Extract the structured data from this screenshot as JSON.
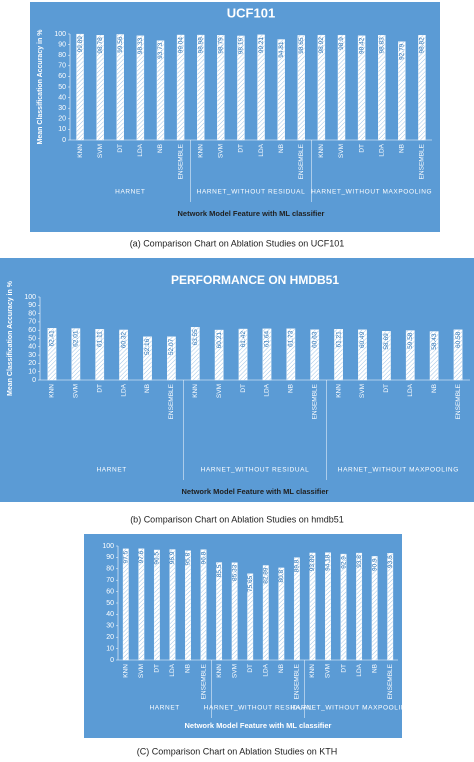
{
  "chart_data": [
    {
      "type": "bar",
      "title": "UCF101",
      "y_label": "Mean Classification Accuracy in %",
      "x_label": "Network Model Feature with ML classifier",
      "caption": "(a) Comparison Chart on Ablation Studies on UCF101",
      "categories": [
        "KNN",
        "SVM",
        "DT",
        "LDA",
        "NB",
        "ENSEMBLE",
        "KNN",
        "SVM",
        "DT",
        "LDA",
        "NB",
        "ENSEMBLE",
        "KNN",
        "SVM",
        "DT",
        "LDA",
        "NB",
        "ENSEMBLE"
      ],
      "groups": [
        "HARNET",
        "HARNET_WITHOUT RESIDUAL",
        "HARNET_WITHOUT MAXPOOLING"
      ],
      "values": [
        99.89,
        98.78,
        99.56,
        98.33,
        93.73,
        99.04,
        98.98,
        98.79,
        98.19,
        99.21,
        94.81,
        98.65,
        98.92,
        98.9,
        98.42,
        98.83,
        92.79,
        98.82
      ],
      "ylim": [
        0,
        100
      ],
      "yticks": [
        0,
        10,
        20,
        30,
        40,
        50,
        60,
        70,
        80,
        90,
        100
      ],
      "background": "#5b9bd5",
      "text_color": "#ffffff"
    },
    {
      "type": "bar",
      "title": "PERFORMANCE ON HMDB51",
      "y_label": "Mean Classification Accuracy in %",
      "x_label": "Network Model Feature with ML classifier",
      "caption": "(b) Comparison Chart on Ablation Studies on hmdb51",
      "categories": [
        "KNN",
        "SVM",
        "DT",
        "LDA",
        "NB",
        "ENSEMBLE",
        "KNN",
        "SVM",
        "DT",
        "LDA",
        "NB",
        "ENSEMBLE",
        "KNN",
        "SVM",
        "DT",
        "LDA",
        "NB",
        "ENSEMBLE"
      ],
      "groups": [
        "HARNET",
        "HARNET_WITHOUT RESIDUAL",
        "HARNET_WITHOUT MAXPOOLING"
      ],
      "values": [
        62.41,
        62.01,
        61.11,
        60.32,
        52.16,
        52.07,
        63.55,
        60.21,
        61.42,
        61.64,
        61.73,
        60.63,
        61.21,
        60.49,
        58.69,
        59.58,
        58.43,
        60.58
      ],
      "ylim": [
        0,
        100
      ],
      "yticks": [
        0,
        10,
        20,
        30,
        40,
        50,
        60,
        70,
        80,
        90,
        100
      ],
      "background": "#5b9bd5",
      "text_color": "#ffffff"
    },
    {
      "type": "bar",
      "y_label": "Mean Classification Accuracy in %",
      "x_label": "Network Model Feature with ML classifier",
      "caption": "(C) Comparison Chart on Ablation Studies on KTH",
      "categories": [
        "KNN",
        "SVM",
        "DT",
        "LDA",
        "NB",
        "ENSEMBLE",
        "KNN",
        "SVM",
        "DT",
        "LDA",
        "NB",
        "ENSEMBLE",
        "KNN",
        "SVM",
        "DT",
        "LDA",
        "NB",
        "ENSEMBLE"
      ],
      "groups": [
        "HARNET",
        "HARNET_WITHOUT RESIDUAL",
        "HARNET_WITHOUT MAXPOOLING"
      ],
      "values": [
        97.5,
        97.6,
        96.5,
        96.9,
        95.8,
        96.8,
        85.5,
        85.33,
        75.65,
        82.89,
        80.8,
        89.8,
        93.89,
        94.18,
        92.9,
        93.8,
        90.9,
        93.6
      ],
      "ylim": [
        0,
        100
      ],
      "yticks": [
        0,
        10,
        20,
        30,
        40,
        50,
        60,
        70,
        80,
        90,
        100
      ],
      "background": "#5b9bd5",
      "text_color": "#ffffff"
    }
  ]
}
